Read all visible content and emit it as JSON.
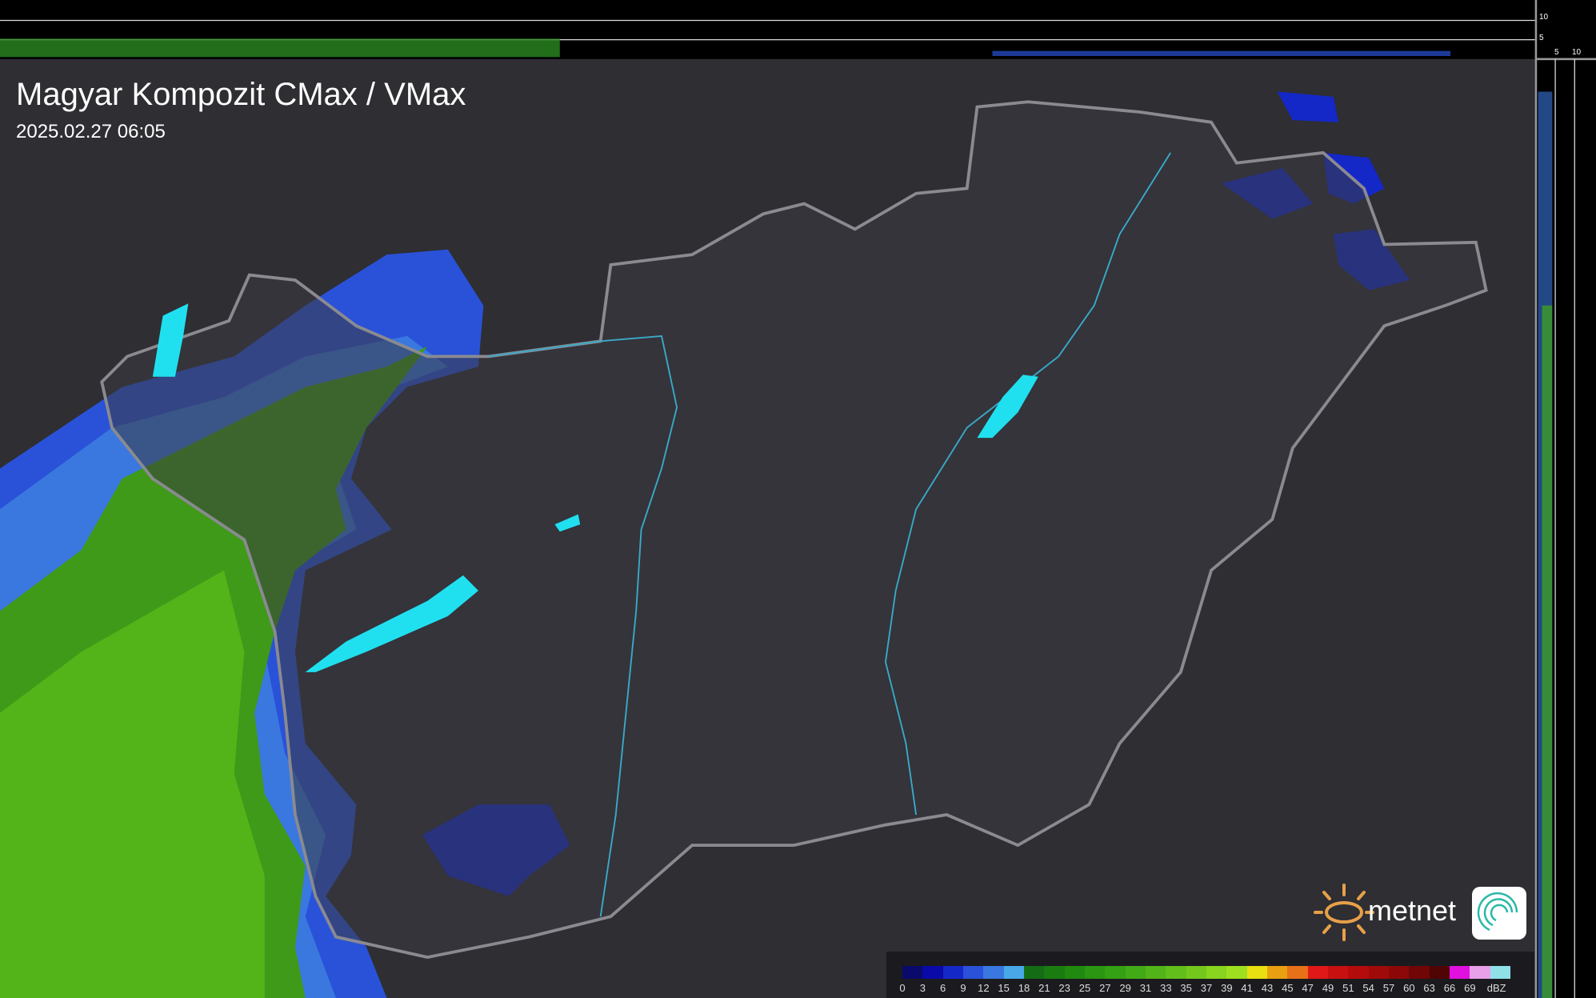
{
  "header": {
    "title": "Magyar Kompozit CMax / VMax",
    "timestamp": "2025.02.27 06:05"
  },
  "side_axis": {
    "vertical_ticks": [
      "10",
      "5"
    ],
    "horizontal_ticks": [
      "5",
      "10"
    ]
  },
  "logo": {
    "brand": "metnet"
  },
  "legend": {
    "unit": "dBZ",
    "labels": [
      "0",
      "3",
      "6",
      "9",
      "12",
      "15",
      "18",
      "21",
      "23",
      "25",
      "27",
      "29",
      "31",
      "33",
      "35",
      "37",
      "39",
      "41",
      "43",
      "45",
      "47",
      "49",
      "51",
      "54",
      "57",
      "60",
      "63",
      "66",
      "69"
    ],
    "colors": [
      "#0a0a6a",
      "#0a0aa8",
      "#1428c8",
      "#2a52d8",
      "#3a78e0",
      "#48a8e8",
      "#146c14",
      "#1a7c10",
      "#208a10",
      "#2a9612",
      "#34a014",
      "#42aa16",
      "#52b418",
      "#62be1a",
      "#74c81c",
      "#88d41e",
      "#9ee020",
      "#e8e010",
      "#e8a010",
      "#e87018",
      "#e01818",
      "#c81010",
      "#b40c0c",
      "#a00a0a",
      "#8c0808",
      "#700606",
      "#500404",
      "#e010e0",
      "#e8a0e8",
      "#90e0e8"
    ]
  },
  "map": {
    "background": "#2e2e33",
    "country_fill": "#3a3a3f",
    "border_color": "#8a8a90",
    "river_color": "#3aa8c8",
    "lake_color": "#20e0f0"
  }
}
